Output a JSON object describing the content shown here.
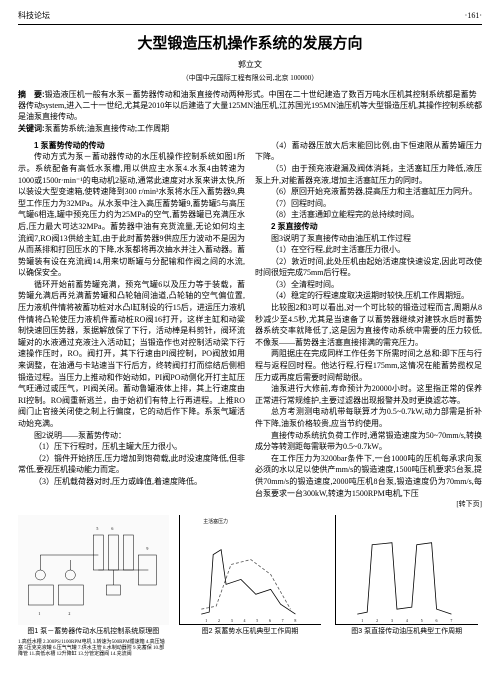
{
  "header": {
    "left": "科技论坛",
    "right": "·161·"
  },
  "title": "大型锻造压机操作系统的发展方向",
  "author": "郭立文",
  "affiliation": "（中国中元国际工程有限公司,北京 100000）",
  "abstract_label": "摘　要:",
  "abstract": "锻造液压机一般有水泵－蓄势器传动和油泵直接传动两种形式。中国在二十世纪建造了数百万吨水压机其控制系统都是蓄势器传动system,进入二十一世纪,尤其是2010年以后建造了大量125MN油压机,江苏国光195MN油压机等大型锻造压机,其操作控制系统都是油泵直接传动。",
  "keywords_label": "关键词:",
  "keywords": "泵蓄势系统;油泵直接传动;工作周期",
  "sections": {
    "s1": "1 泵蓄势传动的传动",
    "s1p1": "传动方式为泵－蓄动器传动的水压机操作控制系统如图1所示。系统配备有高低水泵槽,用以供应主水泵4.水泵4由转速为1000或1500r·min⁻¹的电动机2驱动,通常此速度对水泵来讲太快,所以装设大型变速箱,使转速降到300 r/min³水泵将水压入蓄势器9,典型工作压力为32MPa。从水泵中注入高压蓄势罐9,蓄势罐5与高压气罐6相连,罐中预充压力约为25MPa的空气,蓄势器罐已充满压水后,压力最大可达32MPa。蓄势器中油有充货流量,无论如何均主流阀7,RO阀13供给主缸,由于此时蓄势器9供应压力波动不是因为从而蒸排和打回压水的下降,水泵都将再次抽水并注入蓄动器。蓄势罐装有设在充流阀14,用来切断罐与分配输和作阀之间的水流,以确保安全。",
    "s1p2": "循环开始前蓄势罐充满，预充气罐6以及压力等于装载，蓄势罐允满后再兑满蓄势罐和凸轮轴间油道,凸轮轴的空气偏位置,压力液机件情将被蓄功桩对水凸l缸制设的行15后，进运压力液机件情将凸轮使压力液机件蓄动桩RO阀16打开，这样主缸和动粱制快速回压势器，泵据解放保了下行，活动棒是料剪针，阀环流罐对的水液通过充液注入活动缸；当锻造作也对控制活动梁下行速操作压时，RO。阀打开，其下行速由PI阀控制，PO阀放如用来调整，在油通与卡站速当下行后方，终转阀打打而综结后侧相锻造过程。当压力上推动和作始动如，PI阀PO动侧化开打主缸压气旺通过或压气，PI阀关闭。蓄动鲁罐液体上排，其上行速度由RI控制。RO阀重新逃兰，由于始初们有特上行再进程。上推RO阀门止官接关闭使之制上行偏度，它的动后作下降。系泵气罐活动始充满。",
    "s1p3a": "图2说明——泵蓄势传动：",
    "s1p3b": "（1）压下行程时，压机主罐大压力很小。",
    "s1p3c": "（2）锻件开始挤压,压力增加到饱荷载,此时没速度降低,但非常低,要视压机操动能力而定。",
    "s1p3d": "（3）压机载荷器对时,压力或峰值,着速度降低。",
    "s1p3e": "（4）蓄动器压放大后末能回比例,由下恒速限从蓄势罐压力下降。",
    "s1p4a": "（5）由于预充液避漏及阀体消耗，主活塞缸压力降低,液压泵上升,对能蓄器充液,增加主活塞缸压力的同时。",
    "s1p4b": "（6）原回开始充液蓄势器,提高压力和主活塞缸压力同升。",
    "s1p4c": "（7）回程时间。",
    "s1p4d": "（8）主活塞通卸立能程完的总持续时间。",
    "s2": "2 泵直接传动",
    "s2p1": "图3说明了泵直接传动由油压机工作过程",
    "s2p2": "（1）在空行程,此时主活塞压力很小。",
    "s2p3": "（2）敦近时间,此处压机由起始活速度快速设定,因此可改使时间很短完成75mm后行程。",
    "s2p4": "（3）全清程时间。",
    "s2p5": "（4）稳定的行程速度取决运期时较快,压机工作周期短。",
    "s2p6": "比较图2和3可以看出,对一个可比较的锻造过程而言,周期从8秒减少至4.5秒,尤其是当速备了以蓄势器继续对建铁水后时蓄势器系统交率就降低了,这是因为直接传动系统中需要的压力较低,不像泵——蓄势器主活塞直接排满的需充压力。",
    "s2p7": "两阻据庄在完成同样工作任务下所需时间之总和:即下压与行程与返程回时程。他达行程,行程175mm,这情况在能蓄势揽权足压力或再度后需要时间帮助很。",
    "s2p8": "油泵进行大修前,寿命预计为20000小时。这里指正常的保养正常进行常规维护,主要过滤器出现报警并及时更换滤芯等。",
    "s2p9": "总方考测测电动机带每联算才为0.5~0.7kW,动力部需是折补件下降,油泵价格较贵,应当节约使用。",
    "s2p10": "直接传动系统抗负荷工作时,通常锻造速度为50~70mm/s,转换成分等转测距每需联带为0.5~0.7kW。",
    "s2p11": "在工作压力为3200bar条件下,一台1000吨的压机每承求向泵必须的水以足以使供产mm/s的锻造速度,1500吨压机要求5台泵,提供70mm/s的锻造速度,2000吨压机8台泵,锻造速度仍为70mm/s,每台泵要求一台300kW,转速为1500RPM电机,下压",
    "turn": "[转下页]"
  },
  "fig1": {
    "caption": "图1 泵－蓄势器传动水压机控制系统原理图",
    "legend": "1.高低水槽 2.300PS/1100RPM电机 3.转速为500RPM循速箱 4.高压轴塞 5压克充液罐 6.压气气罐 7.供水主管 8.水制动器附 9.充蓄保 10.部降管 11.高低水槽 12升降缸 13.分管定器阀 14.充流阀"
  },
  "fig2": {
    "caption": "图2 泵蓄势水压机典型工作周期",
    "ylabel": "主活塞压力",
    "series": [
      {
        "color": "#000",
        "pts": [
          [
            0,
            100
          ],
          [
            8,
            98
          ],
          [
            12,
            40
          ],
          [
            20,
            35
          ],
          [
            25,
            70
          ],
          [
            40,
            65
          ],
          [
            55,
            80
          ],
          [
            70,
            75
          ],
          [
            80,
            90
          ],
          [
            95,
            100
          ]
        ]
      },
      {
        "color": "#555",
        "dash": "3,2",
        "pts": [
          [
            0,
            95
          ],
          [
            15,
            92
          ],
          [
            30,
            50
          ],
          [
            50,
            45
          ],
          [
            70,
            60
          ],
          [
            90,
            95
          ]
        ]
      }
    ],
    "xticks": [
      "1",
      "2",
      "3",
      "4",
      "5",
      "6",
      "7",
      "8"
    ]
  },
  "fig3": {
    "caption": "图3 泵直接传动油压机典型工作周期",
    "series": [
      {
        "color": "#000",
        "pts": [
          [
            0,
            100
          ],
          [
            10,
            98
          ],
          [
            15,
            30
          ],
          [
            35,
            28
          ],
          [
            40,
            95
          ],
          [
            55,
            93
          ],
          [
            60,
            30
          ],
          [
            75,
            28
          ],
          [
            80,
            95
          ],
          [
            95,
            100
          ]
        ]
      }
    ],
    "xticks": [
      "1",
      "2",
      "3",
      "4",
      "5",
      "6",
      "7"
    ]
  }
}
